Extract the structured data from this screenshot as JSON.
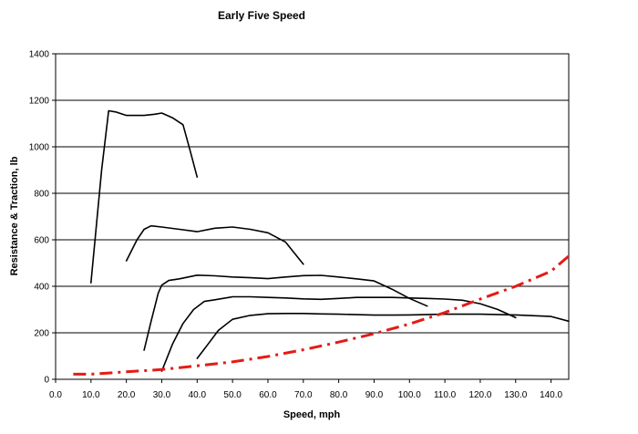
{
  "chart_data": {
    "type": "line",
    "title": "Early Five Speed",
    "xlabel": "Speed, mph",
    "ylabel": "Resistance & Traction, lb",
    "xlim": [
      0,
      145
    ],
    "ylim": [
      0,
      1400
    ],
    "x_ticks": [
      0,
      10,
      20,
      30,
      40,
      50,
      60,
      70,
      80,
      90,
      100,
      110,
      120,
      130,
      140
    ],
    "x_tick_labels": [
      "0.0",
      "10.0",
      "20.0",
      "30.0",
      "40.0",
      "50.0",
      "60.0",
      "70.0",
      "80.0",
      "90.0",
      "100.0",
      "110.0",
      "120.0",
      "130.0",
      "140.0"
    ],
    "y_ticks": [
      0,
      200,
      400,
      600,
      800,
      1000,
      1200,
      1400
    ],
    "y_tick_labels": [
      "0",
      "200",
      "400",
      "600",
      "800",
      "1000",
      "1200",
      "1400"
    ],
    "grid": "horizontal",
    "legend": "none",
    "colors": {
      "traction": "#000000",
      "resistance": "#e41b17"
    },
    "series": [
      {
        "style": "solid",
        "color": "#000000",
        "x": [
          10,
          13,
          15,
          17,
          20,
          25,
          28,
          30,
          33,
          36,
          38,
          40
        ],
        "y": [
          415,
          900,
          1155,
          1150,
          1135,
          1135,
          1140,
          1145,
          1125,
          1095,
          985,
          870
        ]
      },
      {
        "style": "solid",
        "color": "#000000",
        "x": [
          20,
          23,
          25,
          27,
          30,
          35,
          40,
          45,
          50,
          55,
          60,
          65,
          70
        ],
        "y": [
          510,
          600,
          645,
          660,
          655,
          645,
          635,
          650,
          655,
          645,
          630,
          590,
          495
        ]
      },
      {
        "style": "solid",
        "color": "#000000",
        "x": [
          25,
          27,
          29,
          30,
          32,
          35,
          40,
          45,
          50,
          55,
          60,
          65,
          70,
          75,
          80,
          85,
          90,
          95,
          100,
          105
        ],
        "y": [
          125,
          250,
          370,
          405,
          425,
          432,
          448,
          445,
          440,
          437,
          433,
          440,
          446,
          447,
          440,
          432,
          423,
          388,
          348,
          315
        ]
      },
      {
        "style": "solid",
        "color": "#000000",
        "x": [
          30,
          33,
          36,
          39,
          42,
          45,
          50,
          55,
          60,
          65,
          70,
          75,
          80,
          85,
          90,
          95,
          100,
          105,
          110,
          115,
          120,
          125,
          130
        ],
        "y": [
          35,
          150,
          240,
          300,
          335,
          342,
          355,
          355,
          352,
          350,
          346,
          344,
          348,
          352,
          352,
          352,
          350,
          348,
          345,
          340,
          325,
          300,
          265
        ]
      },
      {
        "style": "solid",
        "color": "#000000",
        "x": [
          40,
          43,
          46,
          50,
          55,
          60,
          65,
          70,
          75,
          80,
          85,
          90,
          95,
          100,
          110,
          120,
          130,
          140,
          145
        ],
        "y": [
          90,
          150,
          210,
          258,
          275,
          282,
          283,
          283,
          281,
          280,
          278,
          276,
          276,
          277,
          280,
          280,
          277,
          270,
          250
        ]
      },
      {
        "style": "dash-dot",
        "color": "#e41b17",
        "x": [
          5,
          10,
          20,
          30,
          40,
          50,
          60,
          70,
          80,
          90,
          100,
          110,
          120,
          130,
          140,
          145
        ],
        "y": [
          22,
          22,
          32,
          42,
          58,
          75,
          98,
          127,
          160,
          196,
          238,
          287,
          345,
          400,
          465,
          530
        ]
      }
    ]
  }
}
